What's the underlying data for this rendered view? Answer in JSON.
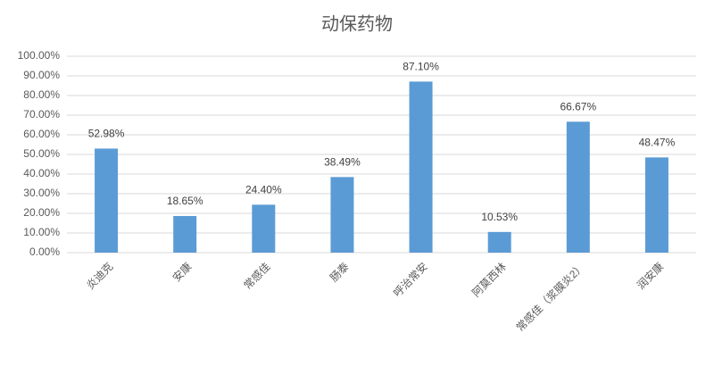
{
  "chart_data": {
    "type": "bar",
    "title": "动保药物",
    "categories": [
      "炎迪克",
      "安康",
      "常感佳",
      "肠泰",
      "呼治常安",
      "阿莫西林",
      "常感佳（浆膜炎2）",
      "润安康"
    ],
    "values": [
      52.98,
      18.65,
      24.4,
      38.49,
      87.1,
      10.53,
      66.67,
      48.47
    ],
    "value_labels": [
      "52.98%",
      "18.65%",
      "24.40%",
      "38.49%",
      "87.10%",
      "10.53%",
      "66.67%",
      "48.47%"
    ],
    "color": "#5b9bd5",
    "ylim": [
      0,
      100
    ],
    "yticks": [
      {
        "value": 0,
        "label": "0.00%"
      },
      {
        "value": 10,
        "label": "10.00%"
      },
      {
        "value": 20,
        "label": "20.00%"
      },
      {
        "value": 30,
        "label": "30.00%"
      },
      {
        "value": 40,
        "label": "40.00%"
      },
      {
        "value": 50,
        "label": "50.00%"
      },
      {
        "value": 60,
        "label": "60.00%"
      },
      {
        "value": 70,
        "label": "70.00%"
      },
      {
        "value": 80,
        "label": "80.00%"
      },
      {
        "value": 90,
        "label": "90.00%"
      },
      {
        "value": 100,
        "label": "100.00%"
      }
    ],
    "grid": true
  }
}
